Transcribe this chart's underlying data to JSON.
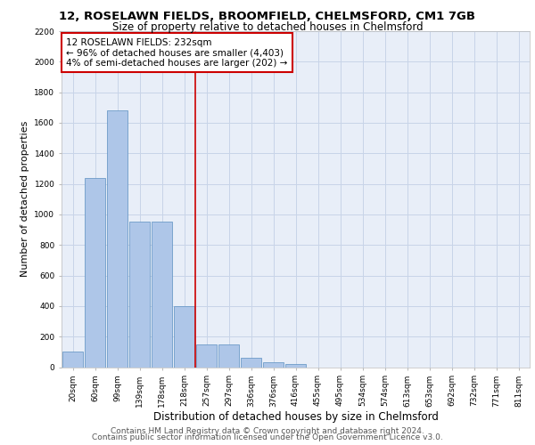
{
  "title1": "12, ROSELAWN FIELDS, BROOMFIELD, CHELMSFORD, CM1 7GB",
  "title2": "Size of property relative to detached houses in Chelmsford",
  "xlabel": "Distribution of detached houses by size in Chelmsford",
  "ylabel": "Number of detached properties",
  "categories": [
    "20sqm",
    "60sqm",
    "99sqm",
    "139sqm",
    "178sqm",
    "218sqm",
    "257sqm",
    "297sqm",
    "336sqm",
    "376sqm",
    "416sqm",
    "455sqm",
    "495sqm",
    "534sqm",
    "574sqm",
    "613sqm",
    "653sqm",
    "692sqm",
    "732sqm",
    "771sqm",
    "811sqm"
  ],
  "values": [
    100,
    1240,
    1680,
    950,
    950,
    400,
    150,
    150,
    60,
    30,
    20,
    0,
    0,
    0,
    0,
    0,
    0,
    0,
    0,
    0,
    0
  ],
  "bar_color": "#aec6e8",
  "bar_edge_color": "#5a8fc0",
  "vline_x": 5.5,
  "vline_color": "#cc0000",
  "annotation_text": "12 ROSELAWN FIELDS: 232sqm\n← 96% of detached houses are smaller (4,403)\n4% of semi-detached houses are larger (202) →",
  "annotation_box_color": "#ffffff",
  "annotation_box_edgecolor": "#cc0000",
  "ylim": [
    0,
    2200
  ],
  "yticks": [
    0,
    200,
    400,
    600,
    800,
    1000,
    1200,
    1400,
    1600,
    1800,
    2000,
    2200
  ],
  "grid_color": "#c8d4e8",
  "background_color": "#e8eef8",
  "footer1": "Contains HM Land Registry data © Crown copyright and database right 2024.",
  "footer2": "Contains public sector information licensed under the Open Government Licence v3.0.",
  "title1_fontsize": 9.5,
  "title2_fontsize": 8.5,
  "xlabel_fontsize": 8.5,
  "ylabel_fontsize": 8,
  "tick_fontsize": 6.5,
  "annotation_fontsize": 7.5,
  "footer_fontsize": 6.5
}
